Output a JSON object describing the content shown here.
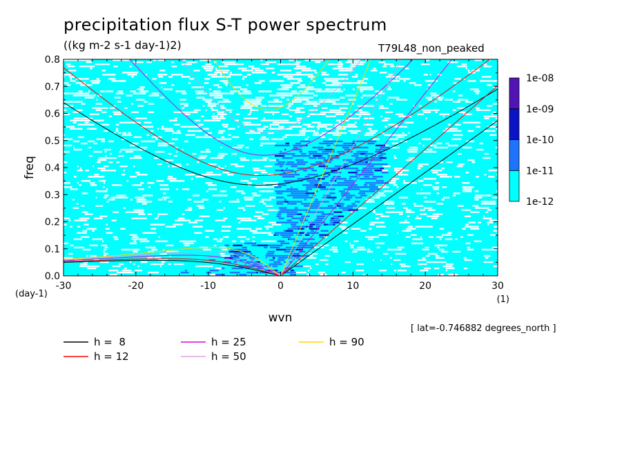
{
  "chart_data": {
    "type": "heatmap",
    "title": "precipitation flux S-T power spectrum",
    "units": "((kg m-2 s-1 day-1)2)",
    "run_name": "T79L48_non_peaked",
    "xlabel": "wvn",
    "ylabel": "freq",
    "x_unit": "(1)",
    "y_unit": "(day-1)",
    "xlim": [
      -30,
      30
    ],
    "ylim": [
      0,
      0.8
    ],
    "x_ticks": [
      -30,
      -20,
      -10,
      0,
      10,
      20,
      30
    ],
    "x_tick_labels": [
      "-30",
      "-20",
      "-10",
      "0",
      "10",
      "20",
      "30"
    ],
    "y_ticks": [
      0,
      0.1,
      0.2,
      0.3,
      0.4,
      0.5,
      0.6,
      0.7,
      0.8
    ],
    "y_tick_labels": [
      "0.0",
      "0.1",
      "0.2",
      "0.3",
      "0.4",
      "0.5",
      "0.6",
      "0.7",
      "0.8"
    ],
    "colorbar": {
      "labels": [
        "1e-12",
        "1e-11",
        "1e-10",
        "1e-09",
        "1e-08"
      ],
      "colors": [
        "#00ffff",
        "#1e74ff",
        "#0a14c4",
        "#5014b4"
      ]
    },
    "note": "[ lat=-0.746882 degrees_north ]",
    "dispersion_curves": [
      {
        "h": 8,
        "label": "h =  8",
        "color": "#000000"
      },
      {
        "h": 12,
        "label": "h = 12",
        "color": "#ff0000"
      },
      {
        "h": 25,
        "label": "h = 25",
        "color": "#dc00dc"
      },
      {
        "h": 50,
        "label": "h = 50",
        "color": "#dda0dd"
      },
      {
        "h": 90,
        "label": "h = 90",
        "color": "#ffd700"
      }
    ]
  }
}
